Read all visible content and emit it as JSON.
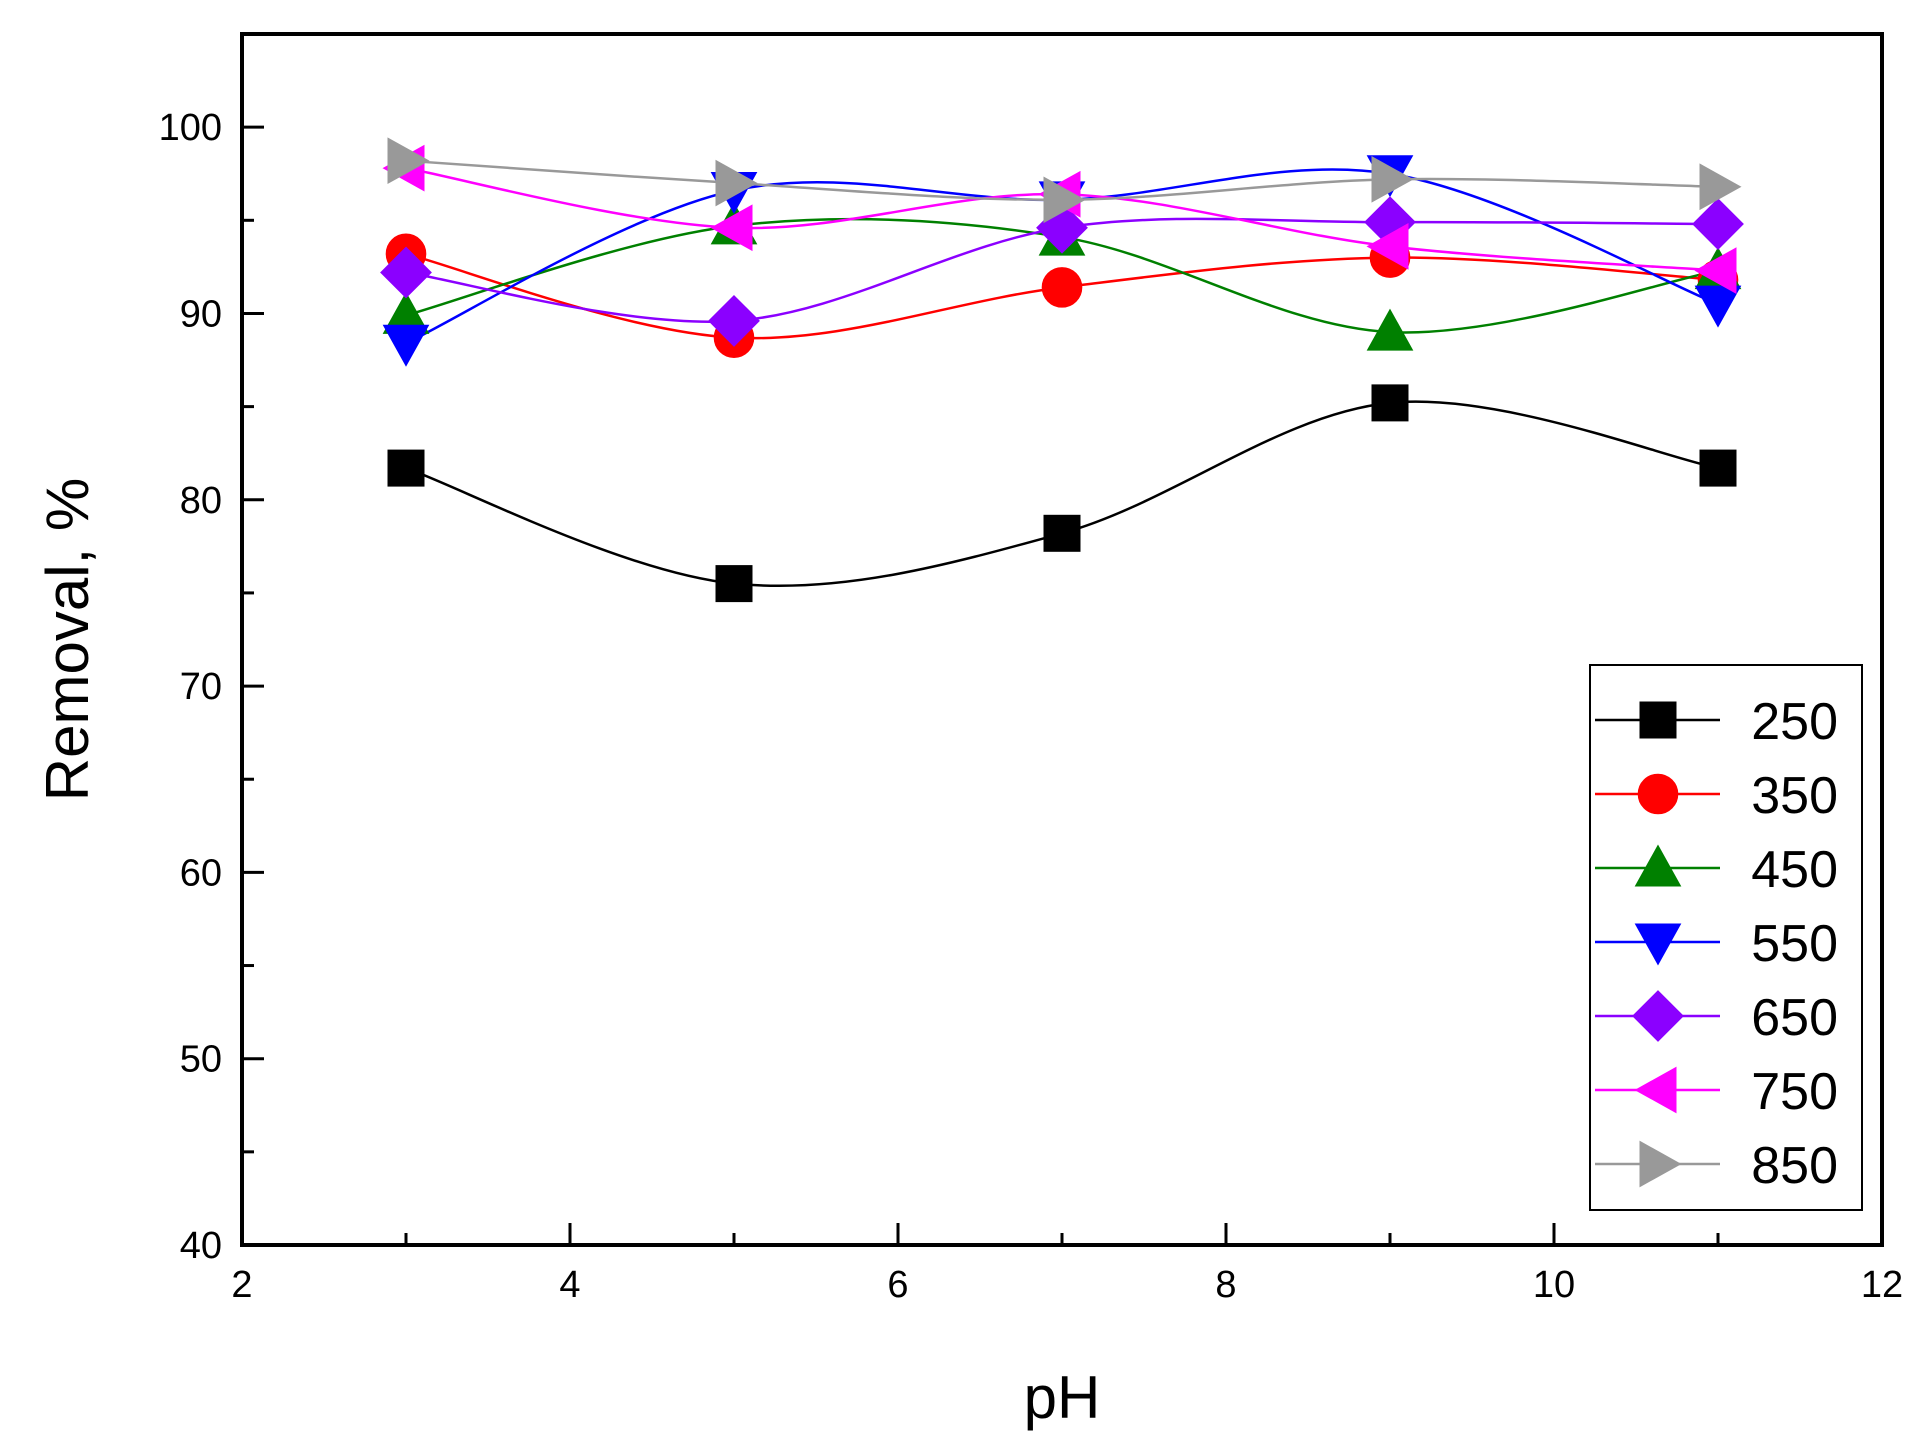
{
  "chart_data": {
    "type": "line",
    "xlabel": "pH",
    "ylabel": "Removal, %",
    "xlim": [
      2,
      12
    ],
    "ylim": [
      40,
      105
    ],
    "x_ticks": [
      2,
      4,
      6,
      8,
      10,
      12
    ],
    "y_ticks": [
      40,
      50,
      60,
      70,
      80,
      90,
      100
    ],
    "x_tick_labels": [
      "2",
      "4",
      "6",
      "8",
      "10",
      "12"
    ],
    "y_tick_labels": [
      "40",
      "50",
      "60",
      "70",
      "80",
      "90",
      "100"
    ],
    "x": [
      3,
      5,
      7,
      9,
      11
    ],
    "legend_position": "bottom-right",
    "series": [
      {
        "name": "250",
        "color": "#000000",
        "marker": "square",
        "values": [
          81.7,
          75.5,
          78.2,
          85.2,
          81.7
        ]
      },
      {
        "name": "350",
        "color": "#ff0000",
        "marker": "circle",
        "values": [
          93.2,
          88.7,
          91.4,
          93.0,
          91.8
        ]
      },
      {
        "name": "450",
        "color": "#008000",
        "marker": "triangle-up",
        "values": [
          89.9,
          94.7,
          94.1,
          89.0,
          92.3
        ]
      },
      {
        "name": "550",
        "color": "#0000ff",
        "marker": "triangle-down",
        "values": [
          88.4,
          96.6,
          96.1,
          97.5,
          90.5
        ]
      },
      {
        "name": "650",
        "color": "#8b00ff",
        "marker": "diamond",
        "values": [
          92.2,
          89.6,
          94.6,
          94.9,
          94.8
        ]
      },
      {
        "name": "750",
        "color": "#ff00ff",
        "marker": "triangle-left",
        "values": [
          97.8,
          94.6,
          96.4,
          93.6,
          92.3
        ]
      },
      {
        "name": "850",
        "color": "#999999",
        "marker": "triangle-right",
        "values": [
          98.2,
          97.0,
          96.1,
          97.2,
          96.8
        ]
      }
    ]
  }
}
